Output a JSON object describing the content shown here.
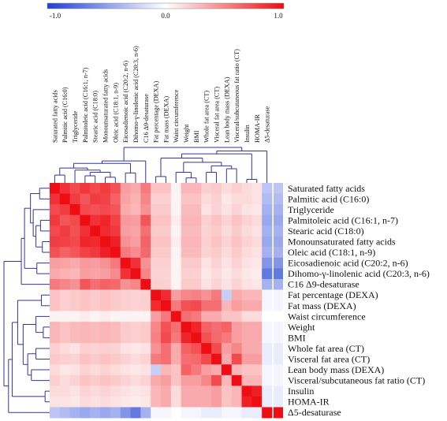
{
  "chart_data": {
    "type": "heatmap",
    "title": "",
    "colorbar": {
      "min": -1.0,
      "max": 1.0,
      "tick_labels": [
        "-1.0",
        "0.0",
        "1.0"
      ],
      "colors": {
        "low": "#1f3fd6",
        "mid": "#ffffff",
        "high": "#ee0d12"
      }
    },
    "variables": [
      "Saturated fatty acids",
      "Palmitic acid (C16:0)",
      "Triglyceride",
      "Palmitoleic acid (C16:1, n-7)",
      "Stearic acid (C18:0)",
      "Monounsaturated fatty acids",
      "Oleic acid (C18:1, n-9)",
      "Eicosadienoic acid (C20:2, n-6)",
      "Dihomo-γ-linolenic acid (C20:3, n-6)",
      "C16 Δ9-desaturase",
      "Fat percentage (DEXA)",
      "Fat mass (DEXA)",
      "Waist circumference",
      "Weight",
      "BMI",
      "Whole fat area (CT)",
      "Visceral fat area (CT)",
      "Lean body mass (DEXA)",
      "Visceral/subcutaneous fat ratio (CT)",
      "Insulin",
      "HOMA-IR",
      "Δ5-desaturase"
    ],
    "matrix": [
      [
        1.0,
        0.85,
        0.75,
        0.82,
        0.75,
        0.8,
        0.72,
        0.4,
        0.35,
        0.55,
        0.25,
        0.25,
        0.05,
        0.3,
        0.3,
        0.2,
        0.22,
        0.15,
        0.2,
        0.15,
        0.12,
        -0.3
      ],
      [
        0.85,
        1.0,
        0.8,
        0.7,
        0.8,
        0.78,
        0.65,
        0.38,
        0.32,
        0.5,
        0.2,
        0.2,
        0.05,
        0.25,
        0.25,
        0.15,
        0.2,
        0.1,
        0.15,
        0.15,
        0.12,
        -0.35
      ],
      [
        0.75,
        0.8,
        1.0,
        0.75,
        0.72,
        0.75,
        0.7,
        0.35,
        0.3,
        0.45,
        0.22,
        0.22,
        0.05,
        0.28,
        0.28,
        0.12,
        0.18,
        0.12,
        0.18,
        0.12,
        0.1,
        -0.4
      ],
      [
        0.82,
        0.7,
        0.75,
        1.0,
        0.85,
        0.9,
        0.78,
        0.42,
        0.4,
        0.7,
        0.25,
        0.25,
        0.08,
        0.3,
        0.3,
        0.2,
        0.25,
        0.18,
        0.25,
        0.18,
        0.15,
        -0.45
      ],
      [
        0.75,
        0.8,
        0.72,
        0.85,
        1.0,
        0.88,
        0.82,
        0.4,
        0.38,
        0.6,
        0.22,
        0.22,
        0.05,
        0.28,
        0.28,
        0.18,
        0.22,
        0.15,
        0.22,
        0.15,
        0.12,
        -0.4
      ],
      [
        0.8,
        0.78,
        0.75,
        0.9,
        0.88,
        1.0,
        0.92,
        0.45,
        0.4,
        0.65,
        0.25,
        0.25,
        0.08,
        0.3,
        0.3,
        0.2,
        0.25,
        0.18,
        0.25,
        0.18,
        0.15,
        -0.45
      ],
      [
        0.72,
        0.65,
        0.7,
        0.78,
        0.82,
        0.92,
        1.0,
        0.55,
        0.48,
        0.62,
        0.22,
        0.22,
        0.05,
        0.28,
        0.28,
        0.18,
        0.22,
        0.15,
        0.22,
        0.15,
        0.12,
        -0.4
      ],
      [
        0.4,
        0.38,
        0.35,
        0.42,
        0.4,
        0.45,
        0.55,
        1.0,
        0.85,
        0.45,
        0.2,
        0.2,
        0.05,
        0.22,
        0.22,
        0.12,
        0.18,
        0.12,
        0.18,
        0.12,
        0.1,
        -0.55
      ],
      [
        0.35,
        0.32,
        0.3,
        0.4,
        0.38,
        0.4,
        0.48,
        0.85,
        1.0,
        0.5,
        0.18,
        0.18,
        0.05,
        0.2,
        0.2,
        0.1,
        0.15,
        0.1,
        0.15,
        0.1,
        0.08,
        -0.7
      ],
      [
        0.55,
        0.5,
        0.45,
        0.7,
        0.6,
        0.65,
        0.62,
        0.45,
        0.5,
        1.0,
        0.2,
        0.2,
        0.05,
        0.22,
        0.22,
        0.12,
        0.18,
        0.12,
        0.18,
        0.12,
        0.1,
        -0.4
      ],
      [
        0.25,
        0.2,
        0.22,
        0.25,
        0.22,
        0.25,
        0.22,
        0.2,
        0.18,
        0.2,
        1.0,
        0.88,
        0.4,
        0.5,
        0.52,
        0.45,
        0.55,
        -0.25,
        0.35,
        0.3,
        0.3,
        -0.05
      ],
      [
        0.25,
        0.2,
        0.22,
        0.25,
        0.22,
        0.25,
        0.22,
        0.2,
        0.18,
        0.2,
        0.88,
        1.0,
        0.55,
        0.72,
        0.75,
        0.6,
        0.6,
        0.3,
        0.4,
        0.35,
        0.35,
        -0.05
      ],
      [
        0.05,
        0.05,
        0.05,
        0.08,
        0.05,
        0.08,
        0.05,
        0.05,
        0.05,
        0.05,
        0.4,
        0.55,
        1.0,
        0.6,
        0.55,
        0.35,
        0.35,
        0.25,
        0.25,
        0.15,
        0.15,
        0.0
      ],
      [
        0.3,
        0.25,
        0.28,
        0.3,
        0.28,
        0.3,
        0.28,
        0.22,
        0.2,
        0.22,
        0.5,
        0.72,
        0.6,
        1.0,
        0.9,
        0.65,
        0.6,
        0.65,
        0.4,
        0.35,
        0.35,
        -0.05
      ],
      [
        0.3,
        0.25,
        0.28,
        0.3,
        0.28,
        0.3,
        0.28,
        0.22,
        0.2,
        0.22,
        0.52,
        0.75,
        0.55,
        0.9,
        1.0,
        0.72,
        0.62,
        0.55,
        0.4,
        0.35,
        0.35,
        -0.05
      ],
      [
        0.2,
        0.15,
        0.12,
        0.2,
        0.18,
        0.2,
        0.18,
        0.12,
        0.1,
        0.12,
        0.45,
        0.6,
        0.35,
        0.65,
        0.72,
        1.0,
        0.75,
        0.4,
        0.5,
        0.35,
        0.35,
        -0.1
      ],
      [
        0.22,
        0.2,
        0.18,
        0.25,
        0.22,
        0.25,
        0.22,
        0.18,
        0.15,
        0.18,
        0.55,
        0.6,
        0.35,
        0.6,
        0.62,
        0.75,
        1.0,
        0.35,
        0.75,
        0.4,
        0.4,
        -0.1
      ],
      [
        0.15,
        0.1,
        0.12,
        0.18,
        0.15,
        0.18,
        0.15,
        0.12,
        0.1,
        0.12,
        -0.25,
        0.3,
        0.25,
        0.65,
        0.55,
        0.4,
        0.35,
        1.0,
        0.3,
        0.25,
        0.25,
        -0.05
      ],
      [
        0.2,
        0.15,
        0.18,
        0.25,
        0.22,
        0.25,
        0.22,
        0.18,
        0.15,
        0.18,
        0.35,
        0.4,
        0.25,
        0.4,
        0.4,
        0.5,
        0.75,
        0.3,
        1.0,
        0.3,
        0.3,
        -0.05
      ],
      [
        0.15,
        0.15,
        0.12,
        0.18,
        0.15,
        0.18,
        0.15,
        0.12,
        0.1,
        0.12,
        0.3,
        0.35,
        0.15,
        0.35,
        0.35,
        0.35,
        0.4,
        0.25,
        0.3,
        1.0,
        0.92,
        -0.1
      ],
      [
        0.12,
        0.12,
        0.1,
        0.15,
        0.12,
        0.15,
        0.12,
        0.1,
        0.08,
        0.1,
        0.3,
        0.35,
        0.15,
        0.35,
        0.35,
        0.35,
        0.4,
        0.25,
        0.3,
        0.92,
        1.0,
        -0.1
      ],
      [
        -0.3,
        -0.35,
        -0.4,
        -0.45,
        -0.4,
        -0.45,
        -0.4,
        -0.55,
        -0.7,
        -0.4,
        -0.05,
        -0.05,
        0.0,
        -0.05,
        -0.05,
        -0.1,
        -0.1,
        -0.05,
        -0.05,
        -0.1,
        -0.1,
        1.0
      ]
    ]
  }
}
